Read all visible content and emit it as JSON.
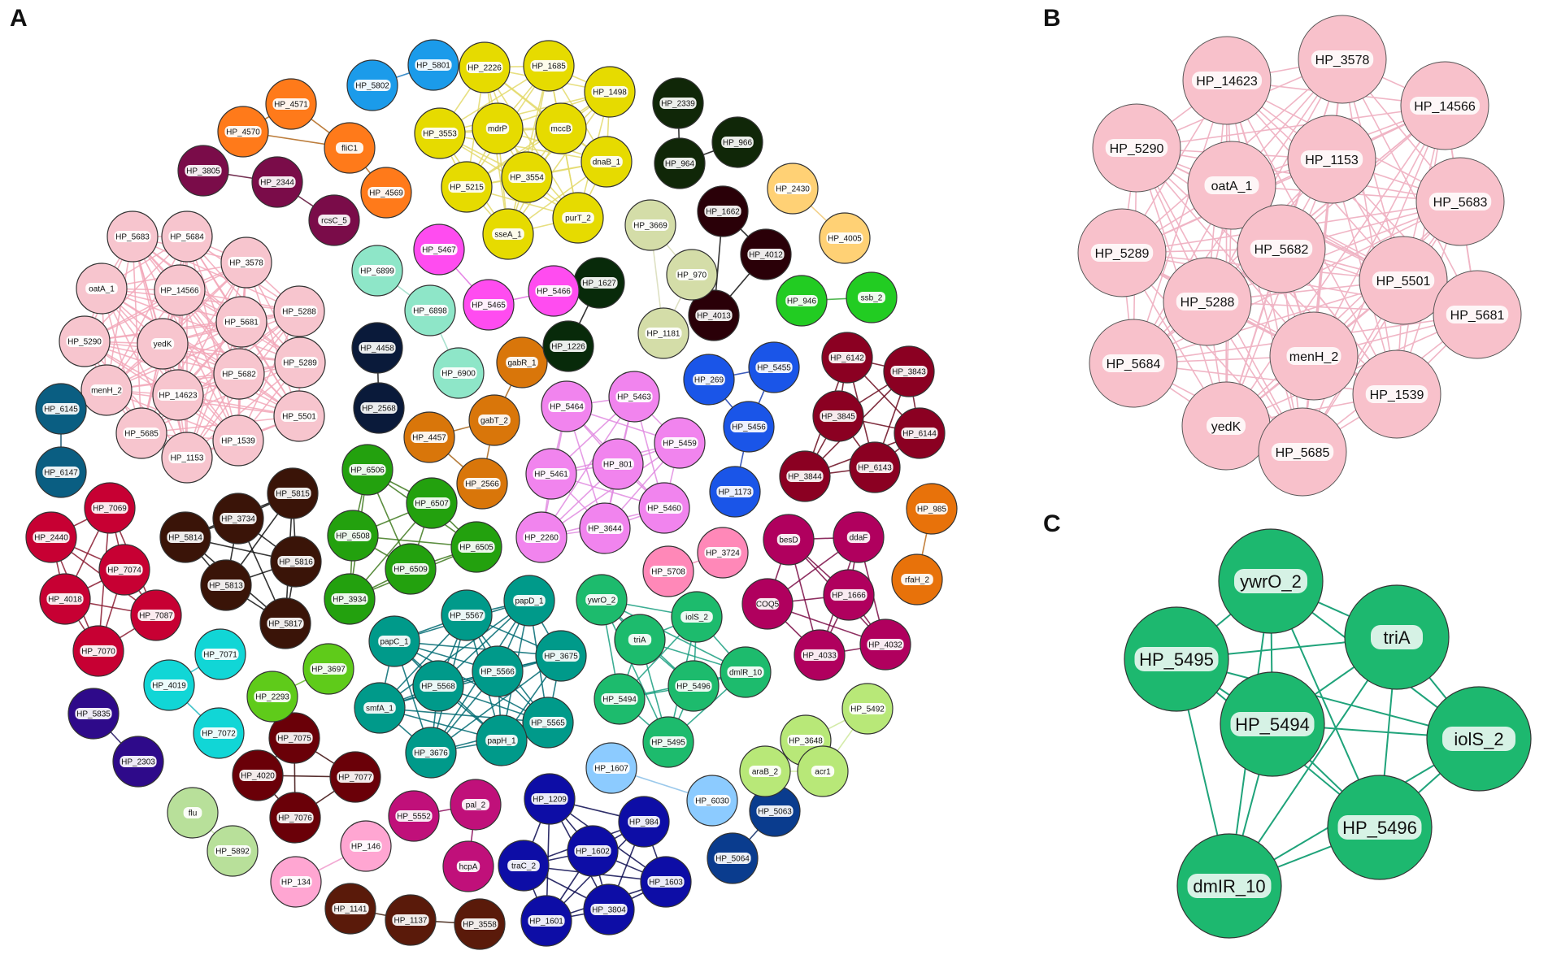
{
  "panels": {
    "A": "A",
    "B": "B",
    "C": "C"
  },
  "panel_a": {
    "modules": [
      {
        "color": "#F7C5CE",
        "edge": "#F2A7B8",
        "nodes": [
          "HP_5683",
          "HP_5684",
          "HP_3578",
          "oatA_1",
          "HP_14566",
          "HP_5288",
          "HP_5681",
          "yedK",
          "HP_5290",
          "HP_5289",
          "menH_2",
          "HP_14623",
          "HP_5682",
          "HP_5685",
          "HP_1539",
          "HP_1153",
          "HP_5501"
        ]
      },
      {
        "color": "#E6DB00",
        "edge": "#E3D96A",
        "nodes": [
          "HP_2226",
          "HP_1685",
          "HP_1498",
          "HP_3553",
          "mdrP",
          "mccB",
          "dnaB_1",
          "HP_5215",
          "HP_3554",
          "purT_2",
          "sseA_1"
        ]
      },
      {
        "color": "#009A8A",
        "edge": "#006A72",
        "nodes": [
          "HP_5567",
          "papD_1",
          "papC_1",
          "HP_3675",
          "HP_5566",
          "HP_5568",
          "smfA_1",
          "HP_5565",
          "HP_3676",
          "papH_1"
        ]
      },
      {
        "color": "#F184EE",
        "edge": "#E18BE1",
        "nodes": [
          "HP_5464",
          "HP_5463",
          "HP_5459",
          "HP_801",
          "HP_5461",
          "HP_5460",
          "HP_2260",
          "HP_3644"
        ]
      },
      {
        "color": "#1DBB6D",
        "edge": "#1A9F80",
        "nodes": [
          "ywrO_2",
          "iolS_2",
          "triA",
          "dmlR_10",
          "HP_5494",
          "HP_5496",
          "HP_5495"
        ]
      },
      {
        "color": "#8B0022",
        "edge": "#6A0A1E",
        "nodes": [
          "HP_6142",
          "HP_3843",
          "HP_3845",
          "HP_6144",
          "HP_3844",
          "HP_6143"
        ]
      },
      {
        "color": "#C70033",
        "edge": "#8A1A30",
        "nodes": [
          "HP_7069",
          "HP_2440",
          "HP_7074",
          "HP_4018",
          "HP_7087",
          "HP_7070"
        ]
      },
      {
        "color": "#3A1408",
        "edge": "#111111",
        "nodes": [
          "HP_5815",
          "HP_3734",
          "HP_5814",
          "HP_5816",
          "HP_5813",
          "HP_5817"
        ]
      },
      {
        "color": "#23A10E",
        "edge": "#3F7A1F",
        "nodes": [
          "HP_6506",
          "HP_6507",
          "HP_6508",
          "HP_6505",
          "HP_6509",
          "HP_3934"
        ]
      },
      {
        "color": "#0D0DA6",
        "edge": "#0A0A50",
        "nodes": [
          "HP_1209",
          "HP_984",
          "HP_1602",
          "traC_2",
          "HP_1603",
          "HP_3804",
          "HP_1601"
        ]
      },
      {
        "color": "#B0005E",
        "edge": "#7A0A45",
        "nodes": [
          "besD",
          "ddaF",
          "COQ5",
          "HP_1666",
          "HP_4033",
          "HP_4032"
        ]
      },
      {
        "color": "#0A5E82",
        "edge": "#0A4A66",
        "nodes": [
          "HP_6145",
          "HP_6147"
        ]
      },
      {
        "color": "#0A3C8E",
        "edge": "#0A2A66",
        "nodes": [
          "HP_5063",
          "HP_5064"
        ]
      },
      {
        "color": "#1A55E8",
        "edge": "#1A3EB0",
        "nodes": [
          "HP_269",
          "HP_5455",
          "HP_5456",
          "HP_1173"
        ]
      },
      {
        "color": "#D9760A",
        "edge": "#A8651A",
        "nodes": [
          "gabR_1",
          "gabT_2",
          "HP_4457",
          "HP_2566"
        ]
      },
      {
        "color": "#FF7A1A",
        "edge": "#B0661A",
        "nodes": [
          "HP_4571",
          "HP_4570",
          "fliC1",
          "HP_4569"
        ]
      },
      {
        "color": "#7A0C49",
        "edge": "#5A0A33",
        "nodes": [
          "HP_3805",
          "HP_2344",
          "rcsC_5"
        ]
      },
      {
        "color": "#2A0008",
        "edge": "#111111",
        "nodes": [
          "HP_1662",
          "HP_4012",
          "HP_4013"
        ]
      },
      {
        "color": "#6A0008",
        "edge": "#3A0A0A",
        "nodes": [
          "HP_7075",
          "HP_4020",
          "HP_7077",
          "HP_7076"
        ]
      },
      {
        "color": "#5A1A0A",
        "edge": "#3A1A0A",
        "nodes": [
          "HP_1141",
          "HP_1137",
          "HP_3558"
        ]
      },
      {
        "color": "#082A0A",
        "edge": "#111111",
        "nodes": [
          "HP_1627",
          "HP_1226"
        ]
      },
      {
        "color": "#102708",
        "edge": "#111111",
        "nodes": [
          "HP_2339",
          "HP_966",
          "HP_964"
        ]
      },
      {
        "color": "#B8E878",
        "edge": "#CDE89A",
        "nodes": [
          "HP_3648",
          "HP_5492",
          "araB_2",
          "acr1"
        ]
      },
      {
        "color": "#D4DDA8",
        "edge": "#D8DCB8",
        "nodes": [
          "HP_3669",
          "HP_970",
          "HP_1181"
        ]
      },
      {
        "color": "#8EE6C8",
        "edge": "#9ADCC6",
        "nodes": [
          "HP_6899",
          "HP_6898",
          "HP_6900"
        ]
      },
      {
        "color": "#FF4CF0",
        "edge": "#E070E0",
        "nodes": [
          "HP_5467",
          "HP_5465",
          "HP_5466"
        ]
      },
      {
        "color": "#11D6D6",
        "edge": "#20B8C0",
        "nodes": [
          "HP_7071",
          "HP_4019",
          "HP_7072"
        ]
      },
      {
        "color": "#C0107A",
        "edge": "#8A0A5A",
        "nodes": [
          "HP_5552",
          "pal_2",
          "hcpA"
        ]
      },
      {
        "color": "#2E0A8A",
        "edge": "#1A0A5A",
        "nodes": [
          "HP_5835",
          "HP_2303"
        ]
      },
      {
        "color": "#FFA6D2",
        "edge": "#F09ACB",
        "nodes": [
          "HP_146",
          "HP_134"
        ]
      },
      {
        "color": "#B8E09A",
        "edge": "#C8E6A8",
        "nodes": [
          "flu",
          "HP_5892"
        ]
      },
      {
        "color": "#FF88B8",
        "edge": "#F08AB0",
        "nodes": [
          "HP_5708",
          "HP_3724"
        ]
      },
      {
        "color": "#5FCB1A",
        "edge": "#66B82A",
        "nodes": [
          "HP_3697",
          "HP_2293"
        ]
      },
      {
        "color": "#1B9BEA",
        "edge": "#1A7AC0",
        "nodes": [
          "HP_5801",
          "HP_5802"
        ]
      },
      {
        "color": "#FFD175",
        "edge": "#F0C875",
        "nodes": [
          "HP_2430",
          "HP_4005"
        ]
      },
      {
        "color": "#0A1A3A",
        "edge": "#111111",
        "nodes": [
          "HP_4458",
          "HP_2568"
        ]
      },
      {
        "color": "#22CC22",
        "edge": "#33AA33",
        "nodes": [
          "HP_946",
          "ssb_2"
        ]
      },
      {
        "color": "#E8720A",
        "edge": "#B86A1A",
        "nodes": [
          "HP_985",
          "rfaH_2"
        ]
      },
      {
        "color": "#8CCBFF",
        "edge": "#8AC0E8",
        "nodes": [
          "HP_1607",
          "HP_6030"
        ]
      }
    ]
  },
  "panel_b": {
    "color": "#F8C1CB",
    "edge": "#F0B5C5",
    "nodes": [
      "HP_3578",
      "HP_14623",
      "HP_14566",
      "HP_5290",
      "HP_1153",
      "oatA_1",
      "HP_5683",
      "HP_5289",
      "HP_5682",
      "HP_5501",
      "HP_5288",
      "HP_5681",
      "HP_5684",
      "menH_2",
      "HP_1539",
      "yedK",
      "HP_5685"
    ]
  },
  "panel_c": {
    "color": "#1DB86F",
    "edge": "#1FA37A",
    "nodes": [
      "ywrO_2",
      "triA",
      "HP_5495",
      "HP_5494",
      "iolS_2",
      "HP_5496",
      "dmIR_10"
    ]
  }
}
